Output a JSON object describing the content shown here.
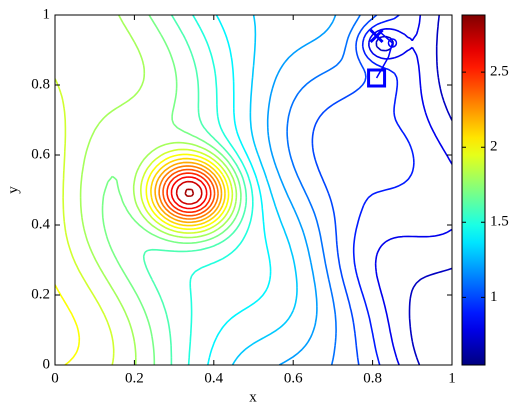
{
  "chart_data": {
    "type": "contour",
    "colormap": "jet",
    "xlabel": "x",
    "ylabel": "y",
    "xlim": [
      0,
      1
    ],
    "ylim": [
      0,
      1
    ],
    "xticks": [
      0,
      0.2,
      0.4,
      0.6,
      0.8,
      1
    ],
    "yticks": [
      0,
      0.2,
      0.4,
      0.6,
      0.8,
      1
    ],
    "clim": [
      0.55,
      2.88
    ],
    "cticks": [
      1,
      1.5,
      2,
      2.5
    ],
    "levels": [
      0.7,
      0.8,
      0.9,
      1.0,
      1.1,
      1.2,
      1.3,
      1.4,
      1.5,
      1.6,
      1.7,
      1.8,
      1.9,
      2.0,
      2.1,
      2.2,
      2.3,
      2.4,
      2.5,
      2.6,
      2.7,
      2.8
    ],
    "trajectory": {
      "color": "#0000ff",
      "x": [
        0.81,
        0.84,
        0.85,
        0.82,
        0.81
      ],
      "y": [
        0.82,
        0.88,
        0.92,
        0.95,
        0.94
      ]
    }
  }
}
